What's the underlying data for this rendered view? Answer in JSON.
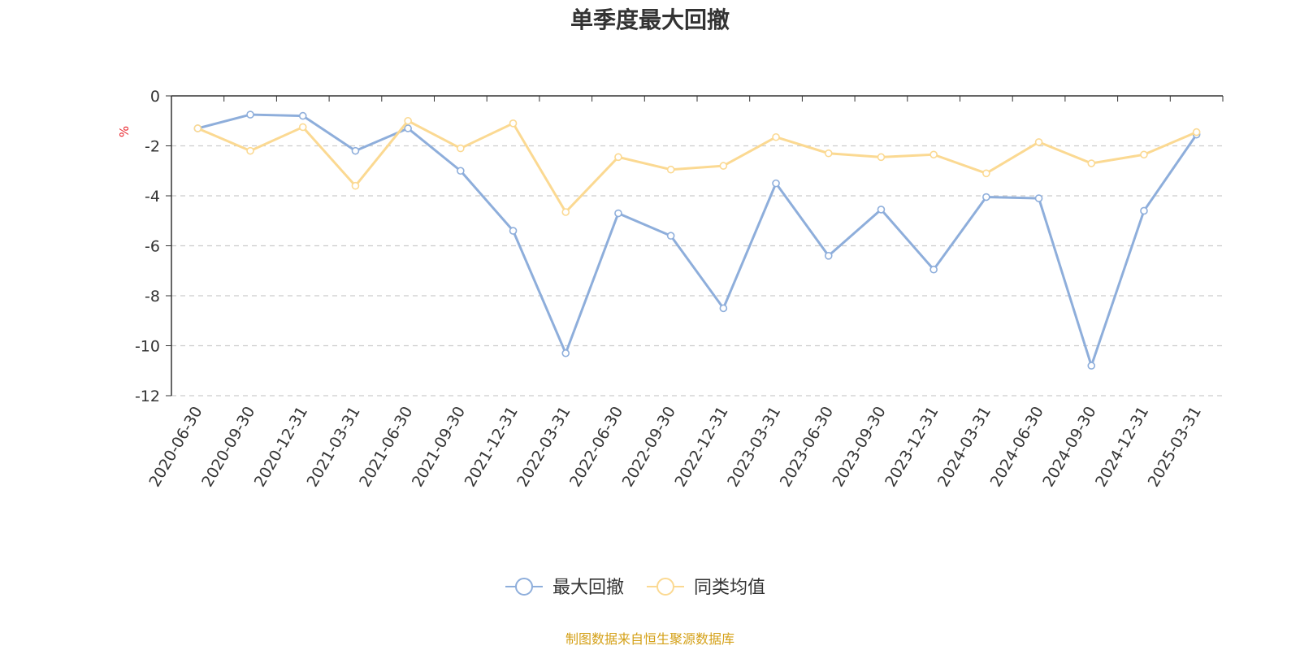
{
  "colors": {
    "series_max_drawdown": "#8eaedb",
    "series_category_avg": "#fbd992",
    "axis": "#333333",
    "grid": "#cccccc",
    "unit": "#e8252c",
    "source": "#d4a017"
  },
  "chart_data": {
    "type": "line",
    "title": "单季度最大回撤",
    "ylabel": "%",
    "ylim": [
      -12,
      0
    ],
    "yticks": [
      0,
      -2,
      -4,
      -6,
      -8,
      -10,
      -12
    ],
    "grid": true,
    "legend_position": "bottom-center",
    "categories": [
      "2020-06-30",
      "2020-09-30",
      "2020-12-31",
      "2021-03-31",
      "2021-06-30",
      "2021-09-30",
      "2021-12-31",
      "2022-03-31",
      "2022-06-30",
      "2022-09-30",
      "2022-12-31",
      "2023-03-31",
      "2023-06-30",
      "2023-09-30",
      "2023-12-31",
      "2024-03-31",
      "2024-06-30",
      "2024-09-30",
      "2024-12-31",
      "2025-03-31"
    ],
    "series": [
      {
        "name": "最大回撤",
        "values": [
          -1.3,
          -0.75,
          -0.8,
          -2.2,
          -1.3,
          -3.0,
          -5.4,
          -10.3,
          -4.7,
          -5.6,
          -8.5,
          -3.5,
          -6.4,
          -4.55,
          -6.95,
          -4.05,
          -4.1,
          -10.8,
          -4.6,
          -1.55
        ]
      },
      {
        "name": "同类均值",
        "values": [
          -1.3,
          -2.2,
          -1.25,
          -3.6,
          -1.0,
          -2.1,
          -1.1,
          -4.65,
          -2.45,
          -2.95,
          -2.8,
          -1.65,
          -2.3,
          -2.45,
          -2.35,
          -3.1,
          -1.85,
          -2.7,
          -2.35,
          -1.45
        ]
      }
    ]
  },
  "source_note": "制图数据来自恒生聚源数据库"
}
